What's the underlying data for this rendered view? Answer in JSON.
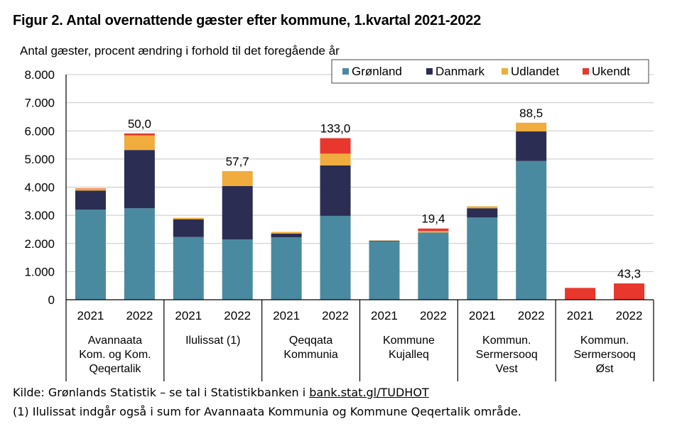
{
  "figure_title": "Figur 2. Antal overnattende gæster efter kommune, 1.kvartal 2021-2022",
  "source": {
    "prefix": "Kilde: Grønlands Statistik – se tal i Statistikbanken i ",
    "link_text": "bank.stat.gl/TUDHOT"
  },
  "footnote": "(1) Ilulissat indgår også i sum for Avannaata Kommunia og Kommune Qeqertalik område.",
  "chart_data": {
    "type": "bar",
    "stacked": true,
    "ylabel": "Antal gæster, procent ændring i forhold til det foregående år",
    "ylim": [
      0,
      8000
    ],
    "yticks": [
      {
        "value": 0,
        "label": "0"
      },
      {
        "value": 1000,
        "label": "1.000"
      },
      {
        "value": 2000,
        "label": "2.000"
      },
      {
        "value": 3000,
        "label": "3.000"
      },
      {
        "value": 4000,
        "label": "4.000"
      },
      {
        "value": 5000,
        "label": "5.000"
      },
      {
        "value": 6000,
        "label": "6.000"
      },
      {
        "value": 7000,
        "label": "7.000"
      },
      {
        "value": 8000,
        "label": "8.000"
      }
    ],
    "grid": true,
    "legend_position": "top-right",
    "groups": [
      {
        "label": [
          "Avannaata",
          "Kom. og Kom.",
          "Qeqertalik"
        ],
        "years": [
          "2021",
          "2022"
        ]
      },
      {
        "label": [
          "Ilulissat (1)"
        ],
        "years": [
          "2021",
          "2022"
        ]
      },
      {
        "label": [
          "Qeqqata",
          "Kommunia"
        ],
        "years": [
          "2021",
          "2022"
        ]
      },
      {
        "label": [
          "Kommune",
          "Kujalleq"
        ],
        "years": [
          "2021",
          "2022"
        ]
      },
      {
        "label": [
          "Kommun.",
          "Sermersooq",
          "Vest"
        ],
        "years": [
          "2021",
          "2022"
        ]
      },
      {
        "label": [
          "Kommun.",
          "Sermersooq",
          "Øst"
        ],
        "years": [
          "2021",
          "2022"
        ]
      }
    ],
    "series": [
      {
        "name": "Grønland",
        "color": "#4a8aa0",
        "values": [
          3200,
          3250,
          2230,
          2140,
          2220,
          2980,
          2080,
          2390,
          2920,
          4930,
          0,
          0
        ]
      },
      {
        "name": "Danmark",
        "color": "#2b2d52",
        "values": [
          680,
          2070,
          630,
          1900,
          130,
          1790,
          20,
          0,
          330,
          1050,
          0,
          0
        ]
      },
      {
        "name": "Udlandet",
        "color": "#f0ac3c",
        "values": [
          70,
          520,
          50,
          530,
          60,
          420,
          10,
          50,
          70,
          310,
          0,
          0
        ]
      },
      {
        "name": "Ukendt",
        "color": "#e8372c",
        "values": [
          10,
          70,
          0,
          0,
          0,
          550,
          0,
          90,
          0,
          0,
          420,
          580
        ]
      }
    ],
    "data_labels": [
      "",
      "50,0",
      "",
      "57,7",
      "",
      "133,0",
      "",
      "19,4",
      "",
      "88,5",
      "",
      "43,3"
    ]
  }
}
